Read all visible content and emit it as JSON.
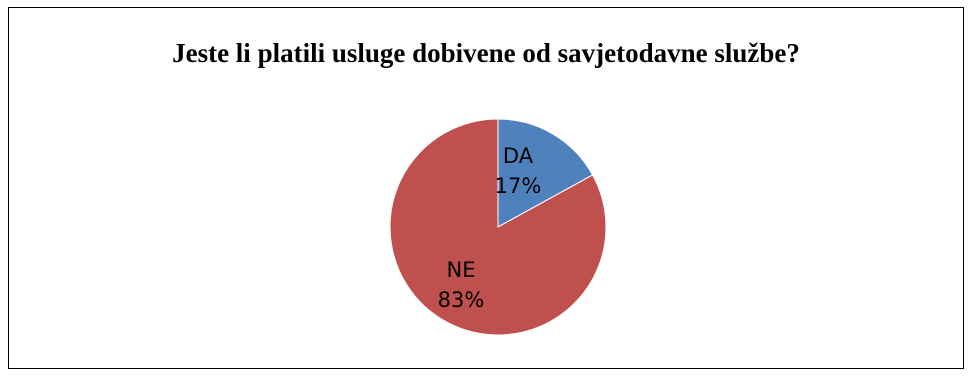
{
  "chart_data": {
    "type": "pie",
    "title": "Jeste li platili usluge dobivene od savjetodavne službe?",
    "categories": [
      "DA",
      "NE"
    ],
    "values": [
      17,
      83
    ],
    "labels": [
      {
        "name": "DA",
        "percent": "17%"
      },
      {
        "name": "NE",
        "percent": "83%"
      }
    ],
    "colors": [
      "#4f81bd",
      "#c0504d"
    ],
    "legend": "none"
  }
}
